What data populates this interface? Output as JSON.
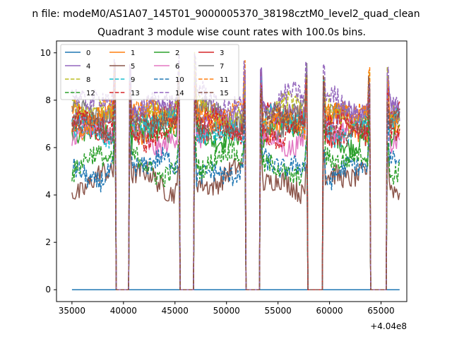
{
  "figure": {
    "suptitle": "n file: modeM0/AS1A07_145T01_9000005370_38198cztM0_level2_quad_clean",
    "offset_label": "+4.04e8"
  },
  "chart_data": {
    "type": "line",
    "title": "Quadrant 3 module wise count rates with 100.0s bins.",
    "xlabel": "",
    "ylabel": "",
    "xlim": [
      33500,
      67500
    ],
    "ylim": [
      -0.5,
      10.5
    ],
    "x_offset": 404000000,
    "x_ticks": [
      35000,
      40000,
      45000,
      50000,
      55000,
      60000,
      65000
    ],
    "x_tick_labels": [
      "35000",
      "40000",
      "45000",
      "50000",
      "55000",
      "60000",
      "65000"
    ],
    "y_ticks": [
      0,
      2,
      4,
      6,
      8,
      10
    ],
    "y_tick_labels": [
      "0",
      "2",
      "4",
      "6",
      "8",
      "10"
    ],
    "grid": false,
    "legend_position": "upper-left",
    "legend_columns": 4,
    "time_range": [
      35000,
      66800
    ],
    "bin_width_s": 100,
    "gaps": [
      [
        39300,
        40500
      ],
      [
        45500,
        46800
      ],
      [
        51900,
        53200
      ],
      [
        57900,
        59300
      ],
      [
        64000,
        65500
      ]
    ],
    "series": [
      {
        "name": "0",
        "color": "#1f77b4",
        "dash": "solid",
        "level": 0.0
      },
      {
        "name": "1",
        "color": "#ff7f0e",
        "dash": "solid",
        "level": 7.1
      },
      {
        "name": "2",
        "color": "#2ca02c",
        "dash": "solid",
        "level": 6.6
      },
      {
        "name": "3",
        "color": "#d62728",
        "dash": "solid",
        "level": 7.0
      },
      {
        "name": "4",
        "color": "#9467bd",
        "dash": "solid",
        "level": 7.4
      },
      {
        "name": "5",
        "color": "#8c564b",
        "dash": "solid",
        "level": 4.6
      },
      {
        "name": "6",
        "color": "#e377c2",
        "dash": "solid",
        "level": 6.5
      },
      {
        "name": "7",
        "color": "#7f7f7f",
        "dash": "solid",
        "level": 7.2
      },
      {
        "name": "8",
        "color": "#bcbd22",
        "dash": "dashed",
        "level": 7.5
      },
      {
        "name": "9",
        "color": "#17becf",
        "dash": "dashed",
        "level": 6.9
      },
      {
        "name": "10",
        "color": "#1f77b4",
        "dash": "dashed",
        "level": 5.1
      },
      {
        "name": "11",
        "color": "#ff7f0e",
        "dash": "dashed",
        "level": 7.3
      },
      {
        "name": "12",
        "color": "#2ca02c",
        "dash": "dashed",
        "level": 5.3
      },
      {
        "name": "13",
        "color": "#d62728",
        "dash": "dashed",
        "level": 6.8
      },
      {
        "name": "14",
        "color": "#9467bd",
        "dash": "dashed",
        "level": 7.9
      },
      {
        "name": "15",
        "color": "#8c564b",
        "dash": "dashed",
        "level": 7.0
      }
    ]
  }
}
